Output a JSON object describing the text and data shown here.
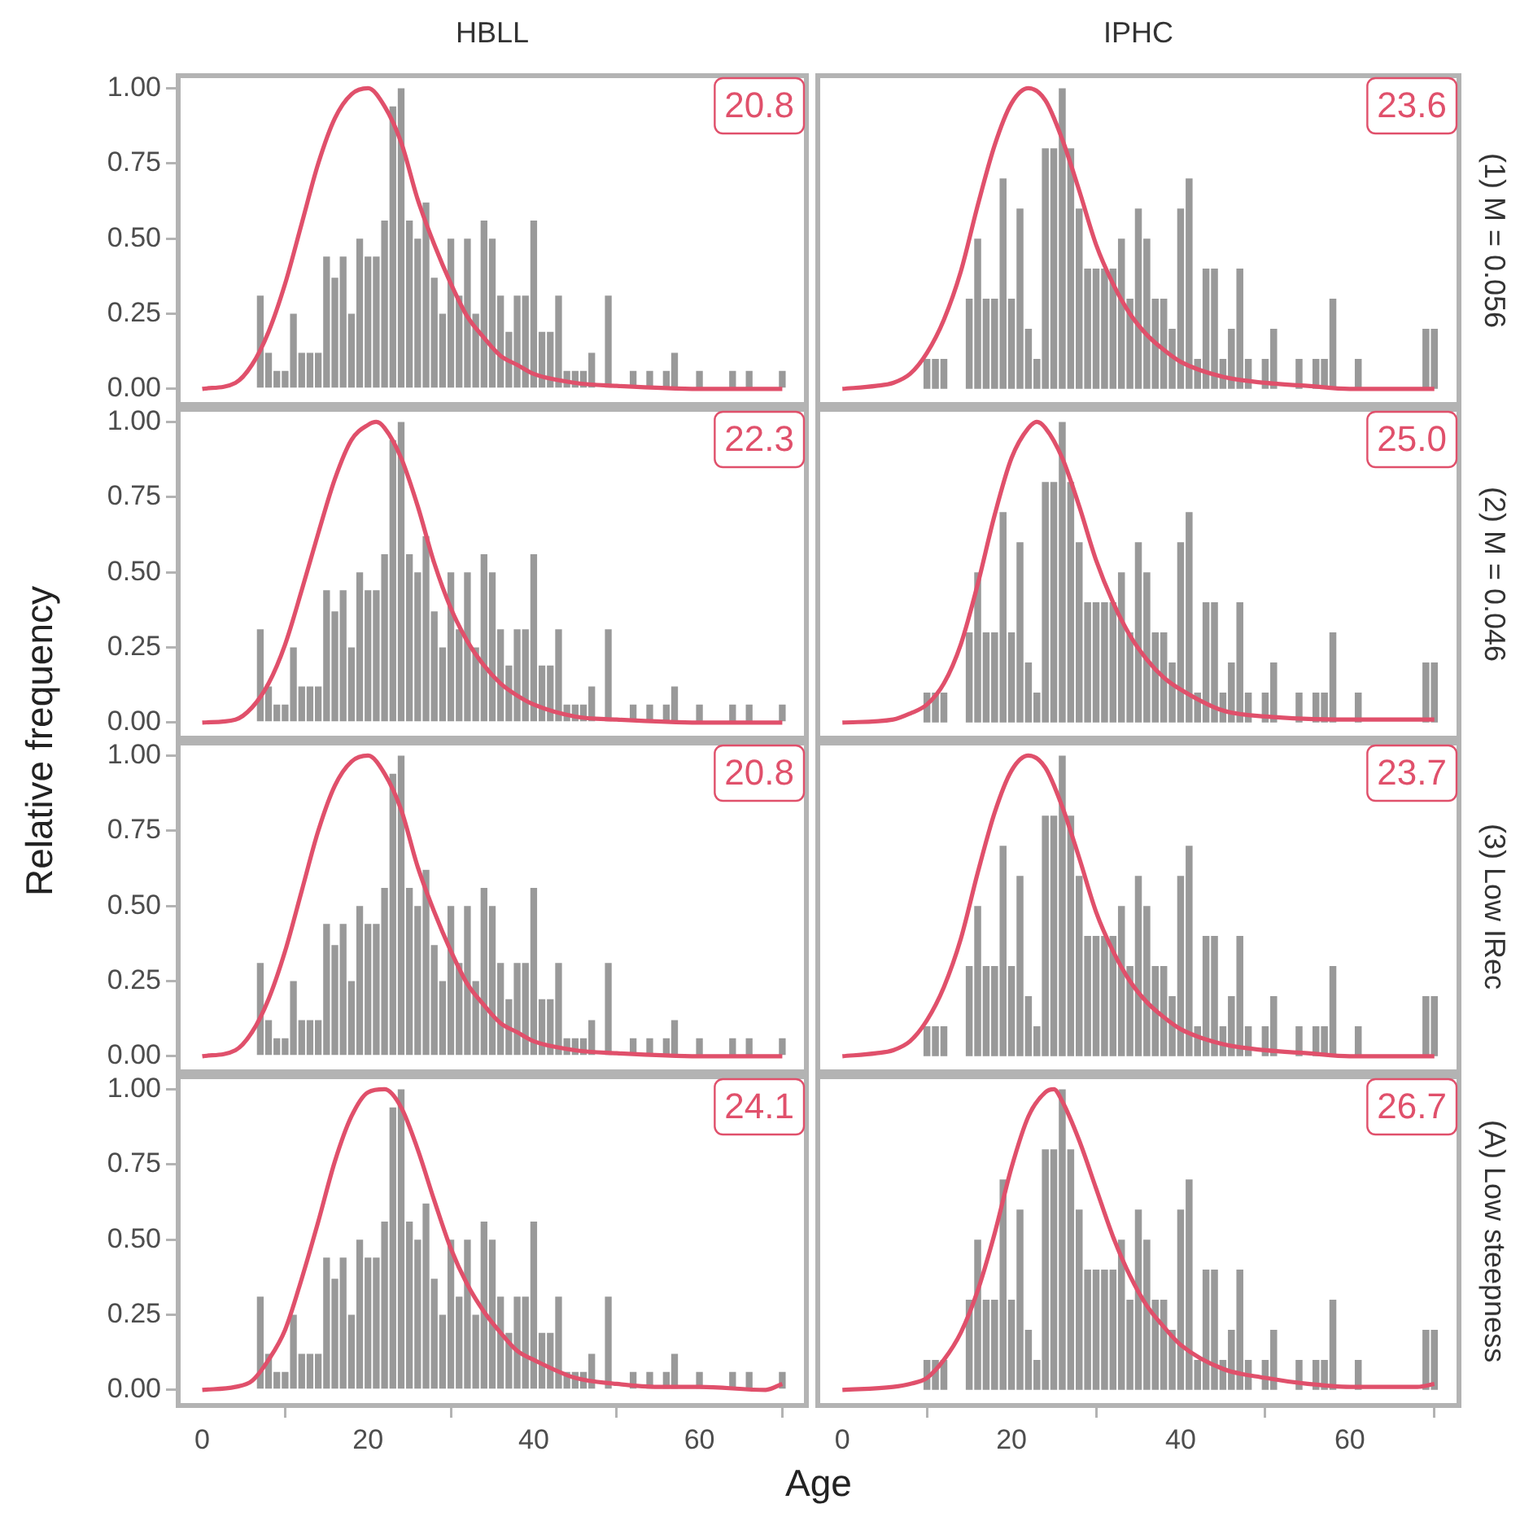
{
  "chart_data": [
    {
      "type": "bar",
      "title": "HBLL",
      "annotations": [
        "20.8"
      ],
      "xlim": [
        -3.2,
        73.2
      ],
      "ylim": [
        -0.06,
        1.05
      ],
      "yticks": [
        {
          "value": 0,
          "label": "0.00"
        },
        {
          "value": 0.25,
          "label": "0.25"
        },
        {
          "value": 0.5,
          "label": "0.50"
        },
        {
          "value": 0.75,
          "label": "0.75"
        },
        {
          "value": 1,
          "label": "1.00"
        }
      ],
      "tick_labels": "y",
      "grid": false,
      "series": [
        {
          "color": "#999999",
          "x": [
            7,
            8,
            9,
            10,
            11,
            12,
            13,
            14,
            15,
            16,
            17,
            18,
            19,
            20,
            21,
            22,
            23,
            24,
            25,
            26,
            27,
            28,
            29,
            30,
            31,
            32,
            33,
            34,
            35,
            36,
            37,
            38,
            39,
            40,
            41,
            42,
            43,
            44,
            45,
            46,
            47,
            49,
            52,
            54,
            56,
            57,
            60,
            64,
            66,
            70
          ],
          "values": [
            0.31,
            0.12,
            0.06,
            0.06,
            0.25,
            0.12,
            0.12,
            0.12,
            0.44,
            0.37,
            0.44,
            0.25,
            0.5,
            0.44,
            0.44,
            0.56,
            0.94,
            1.0,
            0.56,
            0.5,
            0.62,
            0.37,
            0.25,
            0.5,
            0.31,
            0.5,
            0.25,
            0.56,
            0.5,
            0.31,
            0.19,
            0.31,
            0.31,
            0.56,
            0.19,
            0.19,
            0.31,
            0.06,
            0.06,
            0.06,
            0.12,
            0.31,
            0.06,
            0.06,
            0.06,
            0.12,
            0.06,
            0.06,
            0.06,
            0.06
          ]
        },
        {
          "type": "line",
          "color": "#e0506b",
          "x": [
            0,
            4,
            6,
            8,
            10,
            12,
            14,
            16,
            18,
            20,
            22,
            24,
            26,
            28,
            30,
            32,
            34,
            36,
            38,
            40,
            45,
            50,
            60,
            70
          ],
          "values": [
            0,
            0.02,
            0.08,
            0.19,
            0.35,
            0.55,
            0.75,
            0.9,
            0.98,
            1.0,
            0.94,
            0.82,
            0.63,
            0.48,
            0.35,
            0.24,
            0.17,
            0.11,
            0.08,
            0.05,
            0.02,
            0.01,
            0,
            0
          ]
        }
      ]
    },
    {
      "type": "bar",
      "title": "IPHC",
      "y2label": "(1) M = 0.056",
      "annotations": [
        "23.6"
      ],
      "xlim": [
        -3.2,
        73.2
      ],
      "ylim": [
        -0.06,
        1.05
      ],
      "tick_labels": false,
      "grid": false,
      "series": [
        {
          "color": "#999999",
          "x": [
            10,
            11,
            12,
            15,
            16,
            17,
            18,
            19,
            20,
            21,
            22,
            23,
            24,
            25,
            26,
            27,
            28,
            29,
            30,
            31,
            32,
            33,
            34,
            35,
            36,
            37,
            38,
            39,
            40,
            41,
            42,
            43,
            44,
            45,
            46,
            47,
            48,
            50,
            51,
            54,
            56,
            57,
            58,
            61,
            69,
            70
          ],
          "values": [
            0.1,
            0.1,
            0.1,
            0.3,
            0.5,
            0.3,
            0.3,
            0.7,
            0.3,
            0.6,
            0.2,
            0.1,
            0.8,
            0.8,
            1.0,
            0.8,
            0.6,
            0.4,
            0.4,
            0.4,
            0.4,
            0.5,
            0.3,
            0.6,
            0.5,
            0.3,
            0.3,
            0.2,
            0.6,
            0.7,
            0.1,
            0.4,
            0.4,
            0.1,
            0.2,
            0.4,
            0.1,
            0.1,
            0.2,
            0.1,
            0.1,
            0.1,
            0.3,
            0.1,
            0.2,
            0.2
          ]
        },
        {
          "type": "line",
          "color": "#e0506b",
          "x": [
            0,
            4,
            6,
            8,
            10,
            12,
            14,
            16,
            18,
            20,
            22,
            24,
            26,
            28,
            30,
            32,
            34,
            36,
            38,
            40,
            45,
            50,
            55,
            60,
            70
          ],
          "values": [
            0,
            0.01,
            0.02,
            0.05,
            0.12,
            0.23,
            0.39,
            0.61,
            0.81,
            0.95,
            1.0,
            0.96,
            0.83,
            0.66,
            0.48,
            0.35,
            0.25,
            0.18,
            0.13,
            0.09,
            0.04,
            0.02,
            0.01,
            0,
            0
          ]
        }
      ]
    },
    {
      "type": "bar",
      "annotations": [
        "22.3"
      ],
      "xlim": [
        -3.2,
        73.2
      ],
      "ylim": [
        -0.06,
        1.05
      ],
      "yticks": [
        {
          "value": 0,
          "label": "0.00"
        },
        {
          "value": 0.25,
          "label": "0.25"
        },
        {
          "value": 0.5,
          "label": "0.50"
        },
        {
          "value": 0.75,
          "label": "0.75"
        },
        {
          "value": 1,
          "label": "1.00"
        }
      ],
      "tick_labels": "y",
      "grid": false,
      "series": [
        {
          "color": "#999999",
          "x": [
            7,
            8,
            9,
            10,
            11,
            12,
            13,
            14,
            15,
            16,
            17,
            18,
            19,
            20,
            21,
            22,
            23,
            24,
            25,
            26,
            27,
            28,
            29,
            30,
            31,
            32,
            33,
            34,
            35,
            36,
            37,
            38,
            39,
            40,
            41,
            42,
            43,
            44,
            45,
            46,
            47,
            49,
            52,
            54,
            56,
            57,
            60,
            64,
            66,
            70
          ],
          "values": [
            0.31,
            0.12,
            0.06,
            0.06,
            0.25,
            0.12,
            0.12,
            0.12,
            0.44,
            0.37,
            0.44,
            0.25,
            0.5,
            0.44,
            0.44,
            0.56,
            0.94,
            1.0,
            0.56,
            0.5,
            0.62,
            0.37,
            0.25,
            0.5,
            0.31,
            0.5,
            0.25,
            0.56,
            0.5,
            0.31,
            0.19,
            0.31,
            0.31,
            0.56,
            0.19,
            0.19,
            0.31,
            0.06,
            0.06,
            0.06,
            0.12,
            0.31,
            0.06,
            0.06,
            0.06,
            0.12,
            0.06,
            0.06,
            0.06,
            0.06
          ]
        },
        {
          "type": "line",
          "color": "#e0506b",
          "x": [
            0,
            4,
            6,
            8,
            10,
            12,
            14,
            16,
            18,
            20,
            21,
            22,
            24,
            26,
            28,
            30,
            32,
            34,
            36,
            38,
            40,
            45,
            50,
            60,
            70
          ],
          "values": [
            0,
            0.01,
            0.05,
            0.13,
            0.26,
            0.44,
            0.63,
            0.81,
            0.94,
            0.99,
            1.0,
            0.98,
            0.88,
            0.72,
            0.53,
            0.38,
            0.27,
            0.19,
            0.13,
            0.09,
            0.06,
            0.02,
            0.01,
            0,
            0
          ]
        }
      ]
    },
    {
      "type": "bar",
      "y2label": "(2) M = 0.046",
      "annotations": [
        "25.0"
      ],
      "xlim": [
        -3.2,
        73.2
      ],
      "ylim": [
        -0.06,
        1.05
      ],
      "tick_labels": false,
      "grid": false,
      "series": [
        {
          "color": "#999999",
          "x": [
            10,
            11,
            12,
            15,
            16,
            17,
            18,
            19,
            20,
            21,
            22,
            23,
            24,
            25,
            26,
            27,
            28,
            29,
            30,
            31,
            32,
            33,
            34,
            35,
            36,
            37,
            38,
            39,
            40,
            41,
            42,
            43,
            44,
            45,
            46,
            47,
            48,
            50,
            51,
            54,
            56,
            57,
            58,
            61,
            69,
            70
          ],
          "values": [
            0.1,
            0.1,
            0.1,
            0.3,
            0.5,
            0.3,
            0.3,
            0.7,
            0.3,
            0.6,
            0.2,
            0.1,
            0.8,
            0.8,
            1.0,
            0.8,
            0.6,
            0.4,
            0.4,
            0.4,
            0.4,
            0.5,
            0.3,
            0.6,
            0.5,
            0.3,
            0.3,
            0.2,
            0.6,
            0.7,
            0.1,
            0.4,
            0.4,
            0.1,
            0.2,
            0.4,
            0.1,
            0.1,
            0.2,
            0.1,
            0.1,
            0.1,
            0.3,
            0.1,
            0.2,
            0.2
          ]
        },
        {
          "type": "line",
          "color": "#e0506b",
          "x": [
            0,
            6,
            8,
            10,
            12,
            14,
            16,
            18,
            20,
            22,
            23,
            24,
            26,
            28,
            30,
            32,
            34,
            36,
            38,
            40,
            45,
            50,
            60,
            70
          ],
          "values": [
            0,
            0.01,
            0.03,
            0.06,
            0.13,
            0.26,
            0.46,
            0.69,
            0.88,
            0.98,
            1.0,
            0.98,
            0.88,
            0.72,
            0.54,
            0.4,
            0.29,
            0.21,
            0.15,
            0.11,
            0.04,
            0.02,
            0.01,
            0.01
          ]
        }
      ]
    },
    {
      "type": "bar",
      "ylabel": "Relative frequency",
      "annotations": [
        "20.8"
      ],
      "xlim": [
        -3.2,
        73.2
      ],
      "ylim": [
        -0.06,
        1.05
      ],
      "yticks": [
        {
          "value": 0,
          "label": "0.00"
        },
        {
          "value": 0.25,
          "label": "0.25"
        },
        {
          "value": 0.5,
          "label": "0.50"
        },
        {
          "value": 0.75,
          "label": "0.75"
        },
        {
          "value": 1,
          "label": "1.00"
        }
      ],
      "tick_labels": "y",
      "grid": false,
      "series": [
        {
          "color": "#999999",
          "x": [
            7,
            8,
            9,
            10,
            11,
            12,
            13,
            14,
            15,
            16,
            17,
            18,
            19,
            20,
            21,
            22,
            23,
            24,
            25,
            26,
            27,
            28,
            29,
            30,
            31,
            32,
            33,
            34,
            35,
            36,
            37,
            38,
            39,
            40,
            41,
            42,
            43,
            44,
            45,
            46,
            47,
            49,
            52,
            54,
            56,
            57,
            60,
            64,
            66,
            70
          ],
          "values": [
            0.31,
            0.12,
            0.06,
            0.06,
            0.25,
            0.12,
            0.12,
            0.12,
            0.44,
            0.37,
            0.44,
            0.25,
            0.5,
            0.44,
            0.44,
            0.56,
            0.94,
            1.0,
            0.56,
            0.5,
            0.62,
            0.37,
            0.25,
            0.5,
            0.31,
            0.5,
            0.25,
            0.56,
            0.5,
            0.31,
            0.19,
            0.31,
            0.31,
            0.56,
            0.19,
            0.19,
            0.31,
            0.06,
            0.06,
            0.06,
            0.12,
            0.31,
            0.06,
            0.06,
            0.06,
            0.12,
            0.06,
            0.06,
            0.06,
            0.06
          ]
        },
        {
          "type": "line",
          "color": "#e0506b",
          "x": [
            0,
            4,
            6,
            8,
            10,
            12,
            14,
            16,
            18,
            20,
            22,
            24,
            26,
            28,
            30,
            32,
            34,
            36,
            38,
            40,
            45,
            50,
            60,
            70
          ],
          "values": [
            0,
            0.02,
            0.08,
            0.19,
            0.35,
            0.55,
            0.75,
            0.9,
            0.98,
            1.0,
            0.94,
            0.82,
            0.63,
            0.48,
            0.35,
            0.24,
            0.17,
            0.11,
            0.08,
            0.05,
            0.02,
            0.01,
            0,
            0
          ]
        }
      ]
    },
    {
      "type": "bar",
      "y2label": "(3) Low IRec",
      "annotations": [
        "23.7"
      ],
      "xlim": [
        -3.2,
        73.2
      ],
      "ylim": [
        -0.06,
        1.05
      ],
      "tick_labels": false,
      "grid": false,
      "series": [
        {
          "color": "#999999",
          "x": [
            10,
            11,
            12,
            15,
            16,
            17,
            18,
            19,
            20,
            21,
            22,
            23,
            24,
            25,
            26,
            27,
            28,
            29,
            30,
            31,
            32,
            33,
            34,
            35,
            36,
            37,
            38,
            39,
            40,
            41,
            42,
            43,
            44,
            45,
            46,
            47,
            48,
            50,
            51,
            54,
            56,
            57,
            58,
            61,
            69,
            70
          ],
          "values": [
            0.1,
            0.1,
            0.1,
            0.3,
            0.5,
            0.3,
            0.3,
            0.7,
            0.3,
            0.6,
            0.2,
            0.1,
            0.8,
            0.8,
            1.0,
            0.8,
            0.6,
            0.4,
            0.4,
            0.4,
            0.4,
            0.5,
            0.3,
            0.6,
            0.5,
            0.3,
            0.3,
            0.2,
            0.6,
            0.7,
            0.1,
            0.4,
            0.4,
            0.1,
            0.2,
            0.4,
            0.1,
            0.1,
            0.2,
            0.1,
            0.1,
            0.1,
            0.3,
            0.1,
            0.2,
            0.2
          ]
        },
        {
          "type": "line",
          "color": "#e0506b",
          "x": [
            0,
            4,
            6,
            8,
            10,
            12,
            14,
            16,
            18,
            20,
            22,
            24,
            26,
            28,
            30,
            32,
            34,
            36,
            38,
            40,
            45,
            50,
            55,
            60,
            70
          ],
          "values": [
            0,
            0.01,
            0.02,
            0.05,
            0.12,
            0.23,
            0.39,
            0.61,
            0.81,
            0.95,
            1.0,
            0.96,
            0.83,
            0.66,
            0.48,
            0.35,
            0.25,
            0.18,
            0.13,
            0.09,
            0.04,
            0.02,
            0.01,
            0,
            0
          ]
        }
      ]
    },
    {
      "type": "bar",
      "xlabel": "Age",
      "annotations": [
        "24.1"
      ],
      "xlim": [
        -3.2,
        73.2
      ],
      "xticks": [
        0,
        20,
        40,
        60
      ],
      "ylim": [
        -0.06,
        1.05
      ],
      "yticks": [
        {
          "value": 0,
          "label": "0.00"
        },
        {
          "value": 0.25,
          "label": "0.25"
        },
        {
          "value": 0.5,
          "label": "0.50"
        },
        {
          "value": 0.75,
          "label": "0.75"
        },
        {
          "value": 1,
          "label": "1.00"
        }
      ],
      "grid": false,
      "series": [
        {
          "color": "#999999",
          "x": [
            7,
            8,
            9,
            10,
            11,
            12,
            13,
            14,
            15,
            16,
            17,
            18,
            19,
            20,
            21,
            22,
            23,
            24,
            25,
            26,
            27,
            28,
            29,
            30,
            31,
            32,
            33,
            34,
            35,
            36,
            37,
            38,
            39,
            40,
            41,
            42,
            43,
            44,
            45,
            46,
            47,
            49,
            52,
            54,
            56,
            57,
            60,
            64,
            66,
            70
          ],
          "values": [
            0.31,
            0.12,
            0.06,
            0.06,
            0.25,
            0.12,
            0.12,
            0.12,
            0.44,
            0.37,
            0.44,
            0.25,
            0.5,
            0.44,
            0.44,
            0.56,
            0.94,
            1.0,
            0.56,
            0.5,
            0.62,
            0.37,
            0.25,
            0.5,
            0.31,
            0.5,
            0.25,
            0.56,
            0.5,
            0.31,
            0.19,
            0.31,
            0.31,
            0.56,
            0.19,
            0.19,
            0.31,
            0.06,
            0.06,
            0.06,
            0.12,
            0.31,
            0.06,
            0.06,
            0.06,
            0.12,
            0.06,
            0.06,
            0.06,
            0.06
          ]
        },
        {
          "type": "line",
          "color": "#e0506b",
          "x": [
            0,
            4,
            6,
            8,
            10,
            12,
            14,
            16,
            18,
            20,
            22,
            24,
            26,
            28,
            30,
            32,
            34,
            36,
            38,
            40,
            45,
            50,
            55,
            60,
            68,
            70
          ],
          "values": [
            0,
            0.01,
            0.03,
            0.1,
            0.2,
            0.37,
            0.56,
            0.76,
            0.91,
            0.99,
            1.0,
            0.94,
            0.8,
            0.63,
            0.47,
            0.35,
            0.26,
            0.19,
            0.13,
            0.1,
            0.04,
            0.02,
            0.01,
            0.01,
            0,
            0.02
          ]
        }
      ]
    },
    {
      "type": "bar",
      "y2label": "(A) Low steepness",
      "annotations": [
        "26.7"
      ],
      "xlim": [
        -3.2,
        73.2
      ],
      "xticks": [
        0,
        20,
        40,
        60
      ],
      "ylim": [
        -0.06,
        1.05
      ],
      "tick_labels": "x",
      "grid": false,
      "series": [
        {
          "color": "#999999",
          "x": [
            10,
            11,
            12,
            15,
            16,
            17,
            18,
            19,
            20,
            21,
            22,
            23,
            24,
            25,
            26,
            27,
            28,
            29,
            30,
            31,
            32,
            33,
            34,
            35,
            36,
            37,
            38,
            39,
            40,
            41,
            42,
            43,
            44,
            45,
            46,
            47,
            48,
            50,
            51,
            54,
            56,
            57,
            58,
            61,
            69,
            70
          ],
          "values": [
            0.1,
            0.1,
            0.1,
            0.3,
            0.5,
            0.3,
            0.3,
            0.7,
            0.3,
            0.6,
            0.2,
            0.1,
            0.8,
            0.8,
            1.0,
            0.8,
            0.6,
            0.4,
            0.4,
            0.4,
            0.4,
            0.5,
            0.3,
            0.6,
            0.5,
            0.3,
            0.3,
            0.2,
            0.6,
            0.7,
            0.1,
            0.4,
            0.4,
            0.1,
            0.2,
            0.4,
            0.1,
            0.1,
            0.2,
            0.1,
            0.1,
            0.1,
            0.3,
            0.1,
            0.2,
            0.2
          ]
        },
        {
          "type": "line",
          "color": "#e0506b",
          "x": [
            0,
            6,
            8,
            10,
            12,
            14,
            16,
            18,
            20,
            22,
            24,
            25,
            26,
            28,
            30,
            32,
            34,
            36,
            38,
            40,
            45,
            50,
            55,
            60,
            68,
            70
          ],
          "values": [
            0,
            0.01,
            0.02,
            0.04,
            0.1,
            0.19,
            0.33,
            0.52,
            0.74,
            0.91,
            0.99,
            1.0,
            0.96,
            0.83,
            0.67,
            0.51,
            0.38,
            0.28,
            0.21,
            0.15,
            0.07,
            0.04,
            0.02,
            0.01,
            0.01,
            0.02
          ]
        }
      ]
    }
  ]
}
